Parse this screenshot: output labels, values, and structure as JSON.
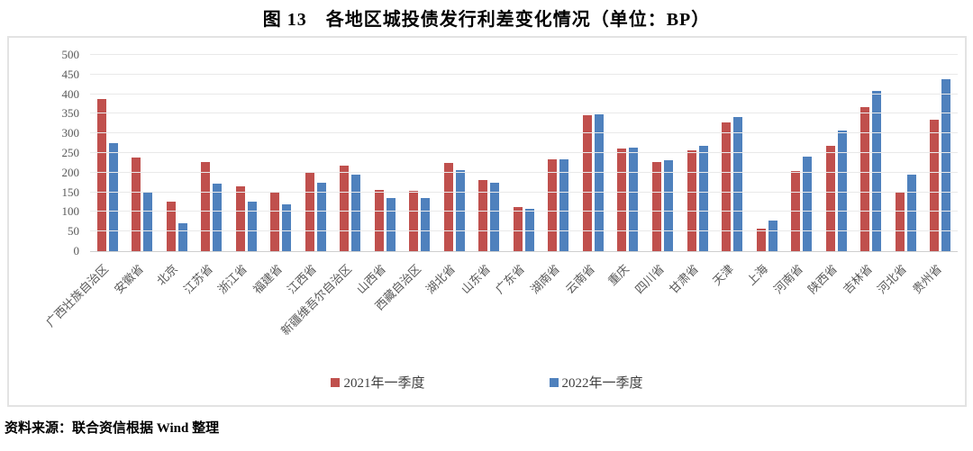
{
  "title": "图 13　各地区城投债发行利差变化情况（单位：BP）",
  "source_note": "资料来源：联合资信根据 Wind 整理",
  "chart_data": {
    "type": "bar",
    "title": "图 13　各地区城投债发行利差变化情况（单位：BP）",
    "unit": "BP",
    "ylim": [
      0,
      500
    ],
    "ytick_step": 50,
    "grid": true,
    "legend_position": "bottom",
    "categories": [
      "广西壮族自治区",
      "安徽省",
      "北京",
      "江苏省",
      "浙江省",
      "福建省",
      "江西省",
      "新疆维吾尔自治区",
      "山西省",
      "西藏自治区",
      "湖北省",
      "山东省",
      "广东省",
      "湖南省",
      "云南省",
      "重庆",
      "四川省",
      "甘肃省",
      "天津",
      "上海",
      "河南省",
      "陕西省",
      "吉林省",
      "河北省",
      "贵州省"
    ],
    "series": [
      {
        "name": "2021年一季度",
        "color": "#C0504D",
        "values": [
          387,
          238,
          127,
          226,
          165,
          152,
          199,
          218,
          156,
          154,
          225,
          181,
          113,
          235,
          346,
          261,
          226,
          258,
          327,
          58,
          204,
          269,
          366,
          150,
          334
        ]
      },
      {
        "name": "2022年一季度",
        "color": "#4F81BD",
        "values": [
          276,
          150,
          70,
          172,
          127,
          120,
          175,
          195,
          136,
          136,
          207,
          174,
          107,
          233,
          348,
          263,
          231,
          268,
          341,
          78,
          240,
          307,
          408,
          195,
          439
        ]
      }
    ]
  }
}
